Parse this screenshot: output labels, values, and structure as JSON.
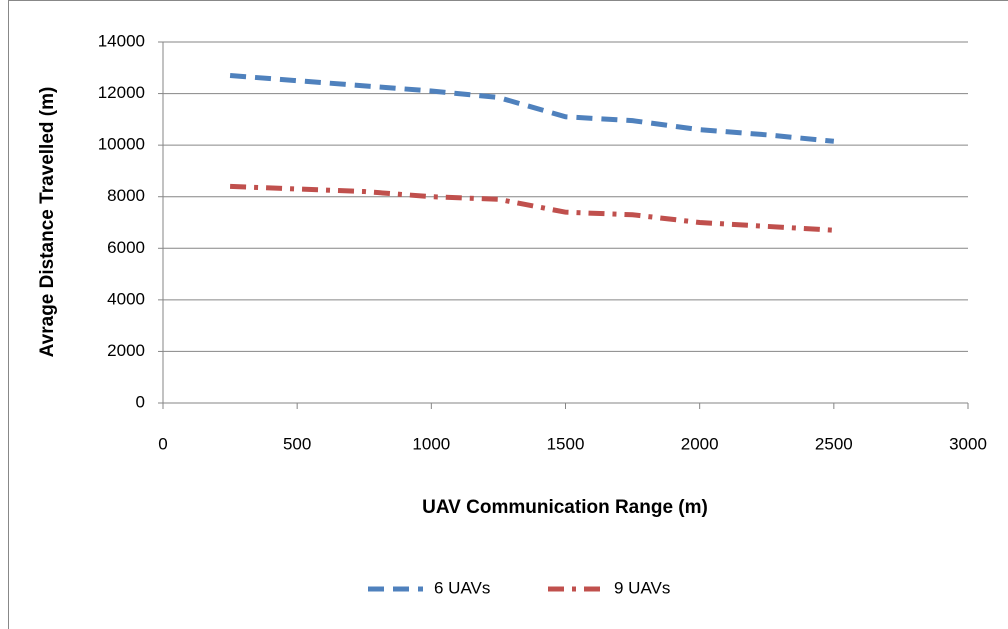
{
  "chart_data": {
    "type": "line",
    "xlabel": "UAV Communication Range (m)",
    "ylabel": "Avrage Distance Travelled (m)",
    "x": [
      250,
      500,
      750,
      1000,
      1250,
      1500,
      1750,
      2000,
      2250,
      2500
    ],
    "series": [
      {
        "name": "6 UAVs",
        "color": "#4f81bd",
        "dash": "dash",
        "values": [
          12700,
          12500,
          12300,
          12100,
          11850,
          11100,
          10950,
          10600,
          10400,
          10150
        ]
      },
      {
        "name": "9 UAVs",
        "color": "#c0504d",
        "dash": "dashdot",
        "values": [
          8400,
          8300,
          8200,
          8000,
          7900,
          7400,
          7300,
          7000,
          6850,
          6700
        ]
      }
    ],
    "xlim": [
      0,
      3000
    ],
    "xticks": [
      0,
      500,
      1000,
      1500,
      2000,
      2500,
      3000
    ],
    "ylim": [
      0,
      14000
    ],
    "yticks": [
      0,
      2000,
      4000,
      6000,
      8000,
      10000,
      12000,
      14000
    ],
    "grid": true,
    "legend": "bottom"
  }
}
